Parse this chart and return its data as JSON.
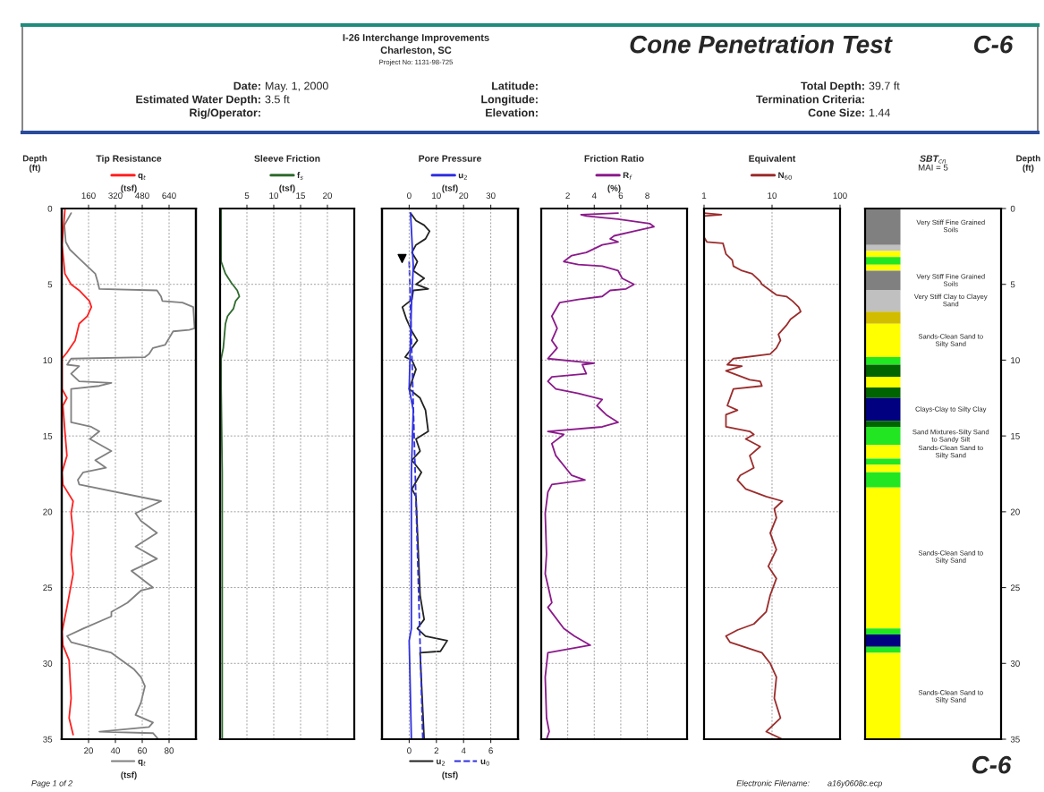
{
  "chart_data": [
    {
      "type": "other",
      "title": "Cone Penetration Test",
      "annotations": [
        "I-26 Interchange Improvements",
        "Charleston, SC",
        "Project No: 1131-98-725",
        "C-6",
        "Date:",
        "May. 1, 2000",
        "Estimated Water Depth:",
        "3.5 ft",
        "Rig/Operator:",
        "Latitude:",
        "Longitude:",
        "Elevation:",
        "Total Depth:",
        "39.7 ft",
        "Termination Criteria:",
        "Cone Size:",
        "1.44",
        "Page 1 of 2",
        "Electronic Filename:",
        "a16y0608c.ecp",
        "C-6"
      ]
    },
    {
      "type": "line",
      "title": "Tip Resistance",
      "ylabel": "Depth\n(ft)",
      "x2label": "(tsf)",
      "xlabel": "(tsf)",
      "ylim": [
        35,
        0
      ],
      "yticks": [
        0,
        5,
        10,
        15,
        20,
        25,
        30,
        35
      ],
      "x2lim": [
        0,
        800
      ],
      "x2ticks": [
        160,
        320,
        480,
        640
      ],
      "xlim": [
        0,
        100
      ],
      "xticks": [
        20,
        40,
        60,
        80
      ],
      "grid": true,
      "legend": "top",
      "series": [
        {
          "name": "q$_{t}$",
          "color": "#ff2020",
          "axis": "x2",
          "x": [
            19,
            2,
            19,
            56,
            104,
            165,
            177,
            152,
            104,
            80,
            31,
            2,
            2,
            31,
            7,
            19,
            31,
            2,
            7,
            68,
            56,
            68,
            56,
            68,
            31,
            2,
            7,
            44,
            56,
            44,
            68
          ],
          "values": [
            0.1,
            2.4,
            4.3,
            5.0,
            5.4,
            6.1,
            6.5,
            7.1,
            7.6,
            8.7,
            9.5,
            9.9,
            11.9,
            12.5,
            13.0,
            14.7,
            16.3,
            17.4,
            18.2,
            19.3,
            20.1,
            21.4,
            22.8,
            24.1,
            26.3,
            27.9,
            28.8,
            29.8,
            32.3,
            33.6,
            34.7
          ]
        },
        {
          "name": "q$_{t}$",
          "color": "#808080",
          "x": [
            7,
            2,
            3,
            6,
            13,
            19,
            25,
            27,
            28,
            71,
            74,
            75,
            90,
            98,
            99,
            95,
            83,
            77,
            68,
            65,
            62,
            7,
            4,
            13,
            7,
            13,
            37,
            28,
            7,
            7,
            22,
            28,
            21,
            37,
            25,
            33,
            16,
            12,
            13,
            74,
            55,
            59,
            71,
            55,
            71,
            52,
            68,
            59,
            49,
            37,
            37,
            16,
            4,
            7,
            37,
            54,
            59,
            62,
            59,
            55,
            68,
            65,
            28,
            68,
            72
          ],
          "values": [
            0.3,
            1.1,
            2.2,
            2.7,
            3.3,
            3.8,
            4.3,
            4.9,
            5.3,
            5.4,
            5.8,
            6.1,
            6.2,
            6.5,
            7.9,
            8.0,
            8.1,
            9.0,
            9.2,
            9.6,
            9.8,
            9.9,
            10.3,
            10.4,
            10.9,
            11.4,
            11.5,
            11.7,
            11.9,
            14.1,
            14.4,
            14.7,
            15.2,
            16.0,
            16.6,
            17.1,
            17.4,
            17.9,
            18.2,
            19.3,
            20.1,
            20.6,
            21.4,
            22.3,
            23.1,
            23.9,
            25.0,
            25.2,
            26.0,
            26.6,
            26.9,
            27.7,
            28.2,
            28.6,
            29.3,
            30.4,
            30.9,
            31.5,
            32.6,
            33.4,
            33.9,
            34.2,
            34.5,
            34.6,
            35.0
          ]
        }
      ]
    },
    {
      "type": "line",
      "title": "Sleeve Friction",
      "xlabel": "(tsf)",
      "ylim": [
        35,
        0
      ],
      "yticks": [
        0,
        5,
        10,
        15,
        20,
        25,
        30,
        35
      ],
      "xlim": [
        0,
        25
      ],
      "xticks": [
        5,
        10,
        15,
        20
      ],
      "grid": true,
      "legend": "top",
      "tick_labels": "x",
      "series": [
        {
          "name": "f$_{s}$",
          "color": "#2e6b2e",
          "x": [
            0.2,
            0.2,
            1.0,
            2.1,
            3.2,
            3.6,
            2.9,
            2.5,
            1.4,
            1.0,
            0.8,
            0.6,
            0.2,
            0.2,
            0.4,
            0.4,
            0.4
          ],
          "values": [
            0,
            3.5,
            4.3,
            4.9,
            5.4,
            5.8,
            6.1,
            6.6,
            7.1,
            7.6,
            8.4,
            9.2,
            9.9,
            11.9,
            17.4,
            25.5,
            35
          ]
        }
      ]
    },
    {
      "type": "line",
      "title": "Pore Pressure",
      "x2label": "(tsf)",
      "xlabel": "(tsf)",
      "ylim": [
        35,
        0
      ],
      "yticks": [
        0,
        5,
        10,
        15,
        20,
        25,
        30,
        35
      ],
      "x2lim": [
        -10,
        40
      ],
      "x2ticks": [
        0,
        10,
        20,
        30
      ],
      "xlim": [
        -2,
        8
      ],
      "xticks": [
        0,
        2,
        4,
        6
      ],
      "grid": true,
      "legend": "top",
      "tick_labels": "x",
      "series": [
        {
          "name": "u$_{2}$",
          "color": "#3030e0",
          "axis": "x2",
          "x": [
            0.5,
            1.5,
            0.8,
            0,
            1.5,
            0.8,
            0.8,
            0,
            0.8
          ],
          "values": [
            0.3,
            3.8,
            6.5,
            11.9,
            13.3,
            17.4,
            27.7,
            28.5,
            35
          ]
        },
        {
          "name": "u$_{2}$",
          "color": "#222222",
          "x": [
            0.1,
            0.5,
            1.1,
            1.5,
            1.2,
            0.5,
            0.2,
            0.6,
            0.3,
            1.1,
            0.5,
            1.4,
            0.3,
            0.2,
            -0.5,
            -0.2,
            0.2,
            0.6,
            0.2,
            -0.3,
            0.2,
            0.5,
            0.2,
            0,
            0.8,
            1.2,
            1.4,
            0.5,
            0.8,
            0.2,
            0.9,
            0.2,
            0.5,
            0.8,
            1.1,
            0.6,
            1.2,
            2.8,
            2.3,
            0.8,
            1.1
          ],
          "values": [
            0.3,
            0.8,
            1.1,
            1.5,
            2.0,
            2.4,
            2.9,
            3.5,
            4.1,
            4.6,
            5.0,
            5.3,
            5.4,
            6.0,
            6.5,
            7.3,
            8.1,
            8.7,
            9.2,
            9.8,
            10.0,
            10.6,
            11.4,
            11.9,
            12.5,
            13.3,
            14.7,
            15.2,
            16.0,
            16.6,
            17.4,
            18.5,
            19.0,
            25.5,
            27.1,
            27.7,
            28.2,
            28.5,
            29.2,
            29.3,
            35
          ]
        },
        {
          "name": "u$_{0}$",
          "color": "#3030e0",
          "line_style": "dashed",
          "x": [
            0,
            1.0
          ],
          "values": [
            3.5,
            35
          ]
        },
        {
          "type": "scatter",
          "marker": "triangle",
          "color": "#000000",
          "axis": "x2",
          "x": [
            -2.6
          ],
          "values": [
            3.3
          ]
        }
      ]
    },
    {
      "type": "line",
      "title": "Friction Ratio",
      "xlabel": "(%)",
      "ylim": [
        35,
        0
      ],
      "yticks": [
        0,
        5,
        10,
        15,
        20,
        25,
        30,
        35
      ],
      "xlim": [
        0,
        11
      ],
      "xticks": [
        2,
        4,
        6,
        8
      ],
      "grid": true,
      "legend": "top",
      "tick_labels": "x",
      "series": [
        {
          "name": "R$_{f}$",
          "color": "#8b1a8b",
          "x": [
            5.8,
            3.0,
            3.4,
            5.8,
            8.2,
            8.5,
            7.0,
            5.5,
            5.2,
            5.8,
            4.6,
            3.4,
            2.3,
            1.7,
            2.8,
            4.6,
            5.8,
            6.1,
            7.0,
            6.4,
            5.2,
            4.6,
            2.8,
            1.4,
            0.8,
            1.2,
            0.8,
            1.2,
            0.5,
            4.0,
            3.1,
            3.4,
            0.8,
            0.5,
            1.1,
            2.8,
            4.6,
            4.2,
            4.9,
            5.8,
            4.6,
            0.5,
            1.7,
            0.8,
            1.1,
            2.3,
            3.3,
            0.8,
            0.5,
            0.3,
            0.4,
            0.3,
            0.8,
            0.5,
            1.7,
            2.5,
            3.7,
            0.5,
            0.3,
            0.4,
            0.6,
            0.4
          ],
          "values": [
            0.3,
            0.4,
            0.5,
            0.7,
            1.0,
            1.2,
            1.5,
            1.8,
            2.0,
            2.2,
            2.4,
            2.9,
            3.1,
            3.5,
            3.7,
            3.8,
            4.1,
            4.6,
            5.0,
            5.3,
            5.4,
            5.8,
            6.0,
            6.2,
            7.1,
            7.9,
            8.7,
            9.2,
            9.9,
            10.2,
            10.3,
            10.9,
            11.1,
            11.4,
            11.9,
            12.2,
            12.6,
            13.0,
            13.6,
            14.1,
            14.4,
            14.7,
            14.9,
            15.5,
            16.3,
            17.6,
            17.9,
            18.2,
            18.7,
            20.1,
            22.8,
            24.1,
            26.0,
            26.3,
            27.7,
            28.2,
            28.8,
            29.3,
            30.9,
            33.6,
            34.5,
            35
          ]
        }
      ]
    },
    {
      "type": "line",
      "title": "Equivalent",
      "ylim": [
        35,
        0
      ],
      "yticks": [
        0,
        5,
        10,
        15,
        20,
        25,
        30,
        35
      ],
      "xlim": [
        1,
        100
      ],
      "xticks": [
        1,
        10,
        100
      ],
      "log": "x",
      "grid": true,
      "legend": "top",
      "tick_labels": "x",
      "series": [
        {
          "name": "N$_{60}$",
          "color": "#9b2c2c",
          "x": [
            1.0,
            1.8,
            1.0,
            1.0,
            1.1,
            1.9,
            2.1,
            2.6,
            2.7,
            3.6,
            5.1,
            6.7,
            7.1,
            9.4,
            11.6,
            16.3,
            20,
            24.6,
            26.4,
            18.7,
            16.3,
            12.4,
            13.3,
            11.6,
            9.4,
            2.7,
            2.2,
            3.6,
            2.1,
            4.7,
            6.7,
            7.1,
            2.7,
            2.2,
            3.1,
            2.1,
            2.1,
            4.7,
            5.4,
            4.1,
            6.7,
            4.7,
            5.4,
            3.4,
            3.1,
            4.1,
            8.2,
            14.2,
            10.8,
            11.6,
            9.4,
            11.6,
            8.8,
            11.6,
            9.4,
            8.2,
            5.4,
            3.1,
            2.1,
            2.4,
            7.1,
            9.4,
            11.6,
            10.8,
            13.3,
            8.2,
            14.2
          ],
          "values": [
            0.3,
            0.4,
            0.5,
            1.9,
            2.2,
            2.3,
            3.0,
            3.4,
            3.8,
            4.1,
            4.3,
            4.8,
            5.0,
            5.4,
            5.7,
            5.8,
            6.1,
            6.5,
            6.8,
            7.3,
            7.7,
            8.3,
            8.7,
            9.2,
            9.6,
            9.9,
            10.3,
            10.4,
            10.7,
            11.3,
            11.4,
            11.7,
            11.9,
            13.0,
            13.3,
            13.6,
            14.4,
            14.7,
            14.9,
            15.2,
            15.7,
            16.3,
            17.1,
            17.6,
            17.9,
            18.5,
            19.0,
            19.3,
            19.8,
            20.4,
            21.4,
            22.5,
            23.6,
            24.4,
            25.5,
            26.6,
            27.4,
            27.8,
            28.2,
            28.6,
            29.3,
            30.0,
            30.9,
            32.3,
            33.6,
            34.5,
            35
          ]
        }
      ]
    },
    {
      "type": "bar",
      "stacked": true,
      "title": "SBT$_{cn}$",
      "subtitle": "MAI = 5",
      "ylabel": "Depth\n(ft)",
      "ylim": [
        35,
        0
      ],
      "yticks": [
        0,
        5,
        10,
        15,
        20,
        25,
        30,
        35
      ],
      "categories": [
        null
      ],
      "annotations": [
        "Very Stiff Fine Grained\nSoils",
        "Very Stiff Fine Grained\nSoils",
        "Very Stiff Clay to Clayey\nSand",
        "Sands-Clean Sand to\nSilty Sand",
        "Clays-Clay to Silty Clay",
        "Sand Mixtures-Silty Sand\nto Sandy Silt",
        "Sands-Clean Sand to\nSilty Sand",
        "Sands-Clean Sand to\nSilty Sand",
        "Sands-Clean Sand to\nSilty Sand"
      ],
      "series": [
        {
          "color": "#808080",
          "values": [
            2.4
          ]
        },
        {
          "color": "#c0c0c0",
          "values": [
            0.4
          ]
        },
        {
          "color": "#ffff00",
          "values": [
            0.4
          ]
        },
        {
          "color": "#22e622",
          "values": [
            0.5
          ]
        },
        {
          "color": "#ffff00",
          "values": [
            0.4
          ]
        },
        {
          "color": "#808080",
          "values": [
            1.3
          ]
        },
        {
          "color": "#c0c0c0",
          "values": [
            1.4
          ]
        },
        {
          "color": "#d2bc00",
          "values": [
            0.8
          ]
        },
        {
          "color": "#ffff00",
          "values": [
            2.2
          ]
        },
        {
          "color": "#22e622",
          "values": [
            0.5
          ]
        },
        {
          "color": "#006400",
          "values": [
            0.8
          ]
        },
        {
          "color": "#ffff00",
          "values": [
            0.7
          ]
        },
        {
          "color": "#006400",
          "values": [
            0.7
          ]
        },
        {
          "color": "#000080",
          "values": [
            1.5
          ]
        },
        {
          "color": "#006400",
          "values": [
            0.4
          ]
        },
        {
          "color": "#22e622",
          "values": [
            1.2
          ]
        },
        {
          "color": "#ffff00",
          "values": [
            0.9
          ]
        },
        {
          "color": "#22e622",
          "values": [
            0.4
          ]
        },
        {
          "color": "#ffff00",
          "values": [
            0.5
          ]
        },
        {
          "color": "#22e622",
          "values": [
            1.0
          ]
        },
        {
          "color": "#ffff00",
          "values": [
            9.3
          ]
        },
        {
          "color": "#22e622",
          "values": [
            0.4
          ]
        },
        {
          "color": "#000080",
          "values": [
            0.8
          ]
        },
        {
          "color": "#22e622",
          "values": [
            0.4
          ]
        },
        {
          "color": "#ffff00",
          "values": [
            5.7
          ]
        }
      ]
    }
  ]
}
